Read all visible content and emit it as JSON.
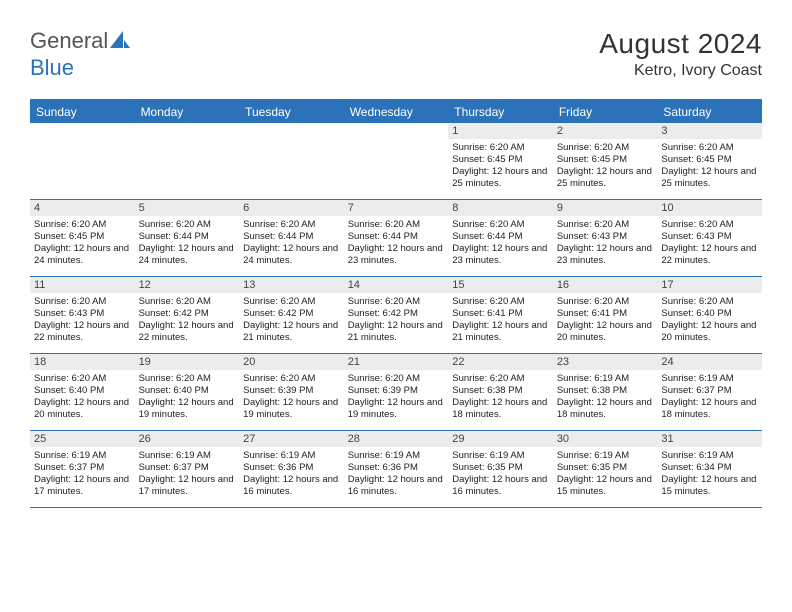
{
  "brand": {
    "word1": "General",
    "word2": "Blue"
  },
  "title": "August 2024",
  "location": "Ketro, Ivory Coast",
  "colors": {
    "brand_blue": "#2b72b8",
    "header_bg": "#2b72b8",
    "header_text": "#ffffff",
    "daynum_bg": "#ececec",
    "row_border": "#2b72b8",
    "text": "#222222",
    "logo_gray": "#555555"
  },
  "typography": {
    "title_fontsize": 28,
    "location_fontsize": 16,
    "dayhead_fontsize": 12,
    "daynum_fontsize": 11,
    "body_fontsize": 9.5
  },
  "layout": {
    "columns": 7,
    "rows": 5,
    "first_weekday_index": 4
  },
  "day_headers": [
    "Sunday",
    "Monday",
    "Tuesday",
    "Wednesday",
    "Thursday",
    "Friday",
    "Saturday"
  ],
  "days": [
    {
      "n": 1,
      "sunrise": "6:20 AM",
      "sunset": "6:45 PM",
      "daylight": "12 hours and 25 minutes."
    },
    {
      "n": 2,
      "sunrise": "6:20 AM",
      "sunset": "6:45 PM",
      "daylight": "12 hours and 25 minutes."
    },
    {
      "n": 3,
      "sunrise": "6:20 AM",
      "sunset": "6:45 PM",
      "daylight": "12 hours and 25 minutes."
    },
    {
      "n": 4,
      "sunrise": "6:20 AM",
      "sunset": "6:45 PM",
      "daylight": "12 hours and 24 minutes."
    },
    {
      "n": 5,
      "sunrise": "6:20 AM",
      "sunset": "6:44 PM",
      "daylight": "12 hours and 24 minutes."
    },
    {
      "n": 6,
      "sunrise": "6:20 AM",
      "sunset": "6:44 PM",
      "daylight": "12 hours and 24 minutes."
    },
    {
      "n": 7,
      "sunrise": "6:20 AM",
      "sunset": "6:44 PM",
      "daylight": "12 hours and 23 minutes."
    },
    {
      "n": 8,
      "sunrise": "6:20 AM",
      "sunset": "6:44 PM",
      "daylight": "12 hours and 23 minutes."
    },
    {
      "n": 9,
      "sunrise": "6:20 AM",
      "sunset": "6:43 PM",
      "daylight": "12 hours and 23 minutes."
    },
    {
      "n": 10,
      "sunrise": "6:20 AM",
      "sunset": "6:43 PM",
      "daylight": "12 hours and 22 minutes."
    },
    {
      "n": 11,
      "sunrise": "6:20 AM",
      "sunset": "6:43 PM",
      "daylight": "12 hours and 22 minutes."
    },
    {
      "n": 12,
      "sunrise": "6:20 AM",
      "sunset": "6:42 PM",
      "daylight": "12 hours and 22 minutes."
    },
    {
      "n": 13,
      "sunrise": "6:20 AM",
      "sunset": "6:42 PM",
      "daylight": "12 hours and 21 minutes."
    },
    {
      "n": 14,
      "sunrise": "6:20 AM",
      "sunset": "6:42 PM",
      "daylight": "12 hours and 21 minutes."
    },
    {
      "n": 15,
      "sunrise": "6:20 AM",
      "sunset": "6:41 PM",
      "daylight": "12 hours and 21 minutes."
    },
    {
      "n": 16,
      "sunrise": "6:20 AM",
      "sunset": "6:41 PM",
      "daylight": "12 hours and 20 minutes."
    },
    {
      "n": 17,
      "sunrise": "6:20 AM",
      "sunset": "6:40 PM",
      "daylight": "12 hours and 20 minutes."
    },
    {
      "n": 18,
      "sunrise": "6:20 AM",
      "sunset": "6:40 PM",
      "daylight": "12 hours and 20 minutes."
    },
    {
      "n": 19,
      "sunrise": "6:20 AM",
      "sunset": "6:40 PM",
      "daylight": "12 hours and 19 minutes."
    },
    {
      "n": 20,
      "sunrise": "6:20 AM",
      "sunset": "6:39 PM",
      "daylight": "12 hours and 19 minutes."
    },
    {
      "n": 21,
      "sunrise": "6:20 AM",
      "sunset": "6:39 PM",
      "daylight": "12 hours and 19 minutes."
    },
    {
      "n": 22,
      "sunrise": "6:20 AM",
      "sunset": "6:38 PM",
      "daylight": "12 hours and 18 minutes."
    },
    {
      "n": 23,
      "sunrise": "6:19 AM",
      "sunset": "6:38 PM",
      "daylight": "12 hours and 18 minutes."
    },
    {
      "n": 24,
      "sunrise": "6:19 AM",
      "sunset": "6:37 PM",
      "daylight": "12 hours and 18 minutes."
    },
    {
      "n": 25,
      "sunrise": "6:19 AM",
      "sunset": "6:37 PM",
      "daylight": "12 hours and 17 minutes."
    },
    {
      "n": 26,
      "sunrise": "6:19 AM",
      "sunset": "6:37 PM",
      "daylight": "12 hours and 17 minutes."
    },
    {
      "n": 27,
      "sunrise": "6:19 AM",
      "sunset": "6:36 PM",
      "daylight": "12 hours and 16 minutes."
    },
    {
      "n": 28,
      "sunrise": "6:19 AM",
      "sunset": "6:36 PM",
      "daylight": "12 hours and 16 minutes."
    },
    {
      "n": 29,
      "sunrise": "6:19 AM",
      "sunset": "6:35 PM",
      "daylight": "12 hours and 16 minutes."
    },
    {
      "n": 30,
      "sunrise": "6:19 AM",
      "sunset": "6:35 PM",
      "daylight": "12 hours and 15 minutes."
    },
    {
      "n": 31,
      "sunrise": "6:19 AM",
      "sunset": "6:34 PM",
      "daylight": "12 hours and 15 minutes."
    }
  ],
  "labels": {
    "sunrise": "Sunrise:",
    "sunset": "Sunset:",
    "daylight": "Daylight:"
  }
}
